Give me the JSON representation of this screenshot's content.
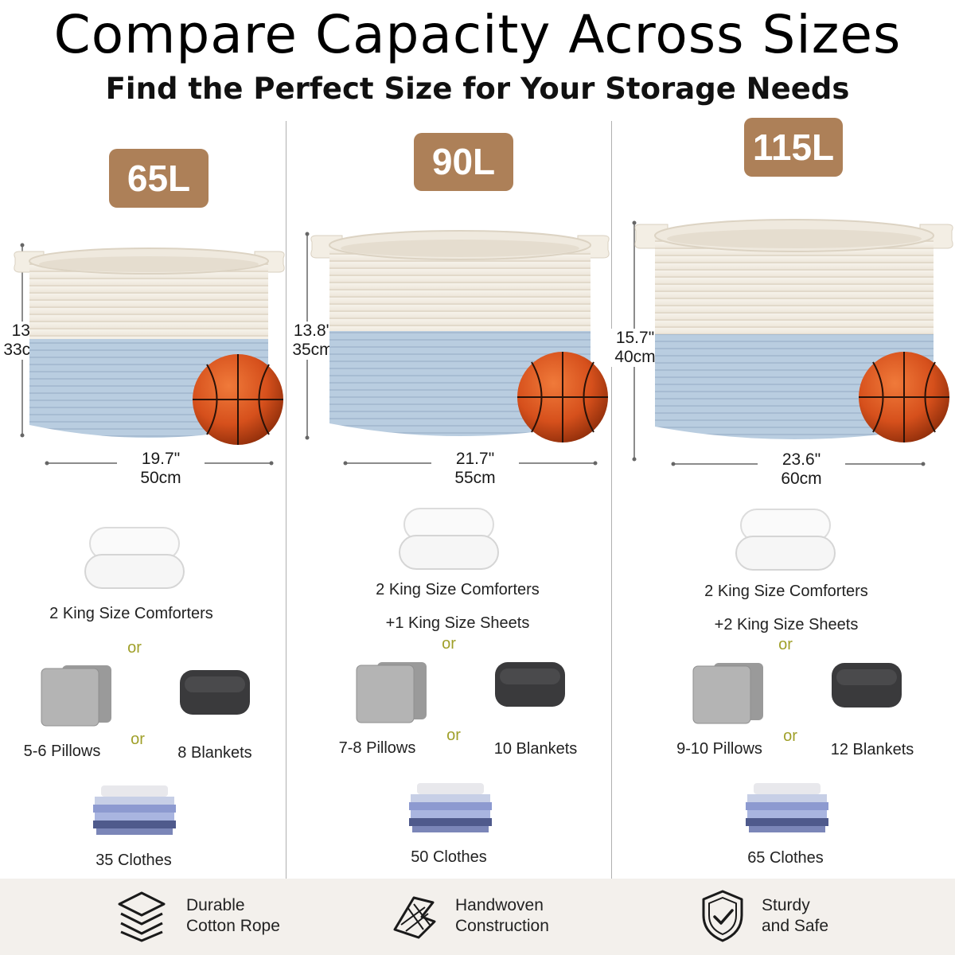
{
  "header": {
    "title": "Compare Capacity Across Sizes",
    "subtitle": "Find the Perfect Size for Your Storage Needs"
  },
  "colors": {
    "badge": "#ad8058",
    "basket_top": "#f1ece2",
    "basket_bottom": "#b9cde0",
    "or_text": "#a0a02a",
    "footer_bg": "#f3f0ec"
  },
  "sizes": [
    {
      "capacity": "65L",
      "height_in": "13\"",
      "height_cm": "33cm",
      "width_in": "19.7\"",
      "width_cm": "50cm",
      "comforters": "2 King Size Comforters",
      "sheets": "",
      "or_1": "or",
      "or_2": "or",
      "pillows": "5-6 Pillows",
      "blankets": "8 Blankets",
      "clothes": "35 Clothes"
    },
    {
      "capacity": "90L",
      "height_in": "13.8\"",
      "height_cm": "35cm",
      "width_in": "21.7\"",
      "width_cm": "55cm",
      "comforters": "2 King Size Comforters",
      "sheets": "+1 King Size Sheets",
      "or_1": "or",
      "or_2": "or",
      "pillows": "7-8 Pillows",
      "blankets": "10 Blankets",
      "clothes": "50 Clothes"
    },
    {
      "capacity": "115L",
      "height_in": "15.7\"",
      "height_cm": "40cm",
      "width_in": "23.6\"",
      "width_cm": "60cm",
      "comforters": "2 King Size Comforters",
      "sheets": "+2 King Size Sheets",
      "or_1": "or",
      "or_2": "or",
      "pillows": "9-10 Pillows",
      "blankets": "12 Blankets",
      "clothes": "65 Clothes"
    }
  ],
  "features": [
    {
      "line1": "Durable",
      "line2": "Cotton Rope",
      "icon": "layers-icon"
    },
    {
      "line1": "Handwoven",
      "line2": "Construction",
      "icon": "weave-icon"
    },
    {
      "line1": "Sturdy",
      "line2": "and Safe",
      "icon": "shield-check-icon"
    }
  ]
}
